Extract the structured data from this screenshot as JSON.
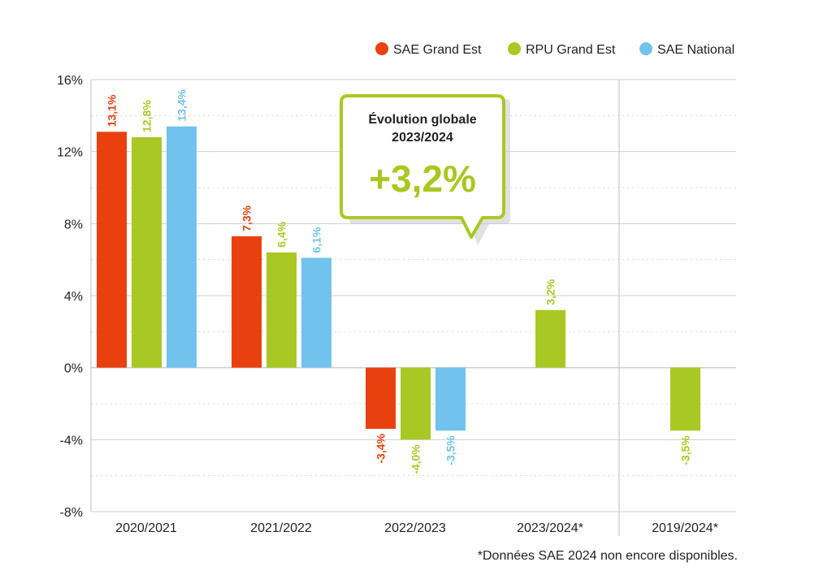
{
  "colors": {
    "sae_ge": "#e8410f",
    "rpu_ge": "#aac824",
    "sae_nat": "#72c2ee",
    "grid": "#cfcfcf",
    "axis": "#999999"
  },
  "callout": {
    "title_line1": "Évolution globale",
    "title_line2": "2023/2024",
    "value": "+3,2%"
  },
  "footnote": "*Données SAE 2024 non encore disponibles.",
  "chart_data": {
    "type": "bar",
    "title": "",
    "xlabel": "",
    "ylabel": "",
    "ylim": [
      -8,
      16
    ],
    "yticks": [
      16,
      12,
      8,
      4,
      0,
      -4,
      -8
    ],
    "ytick_labels": [
      "16%",
      "12%",
      "8%",
      "4%",
      "0%",
      "-4%",
      "-8%"
    ],
    "categories": [
      "2020/2021",
      "2021/2022",
      "2022/2023",
      "2023/2024*",
      "2019/2024*"
    ],
    "series": [
      {
        "name": "SAE Grand Est",
        "color": "#e8410f",
        "values": [
          13.1,
          7.3,
          -3.4,
          null,
          null
        ],
        "labels": [
          "13,1%",
          "7,3%",
          "-3,4%",
          "",
          ""
        ]
      },
      {
        "name": "RPU Grand Est",
        "color": "#aac824",
        "values": [
          12.8,
          6.4,
          -4.0,
          3.2,
          -3.5
        ],
        "labels": [
          "12,8%",
          "6,4%",
          "-4,0%",
          "3,2%",
          "-3,5%"
        ]
      },
      {
        "name": "SAE National",
        "color": "#72c2ee",
        "values": [
          13.4,
          6.1,
          -3.5,
          null,
          null
        ],
        "labels": [
          "13,4%",
          "6,1%",
          "-3,5%",
          "",
          ""
        ]
      }
    ],
    "legend_position": "top-right",
    "grid": true
  }
}
